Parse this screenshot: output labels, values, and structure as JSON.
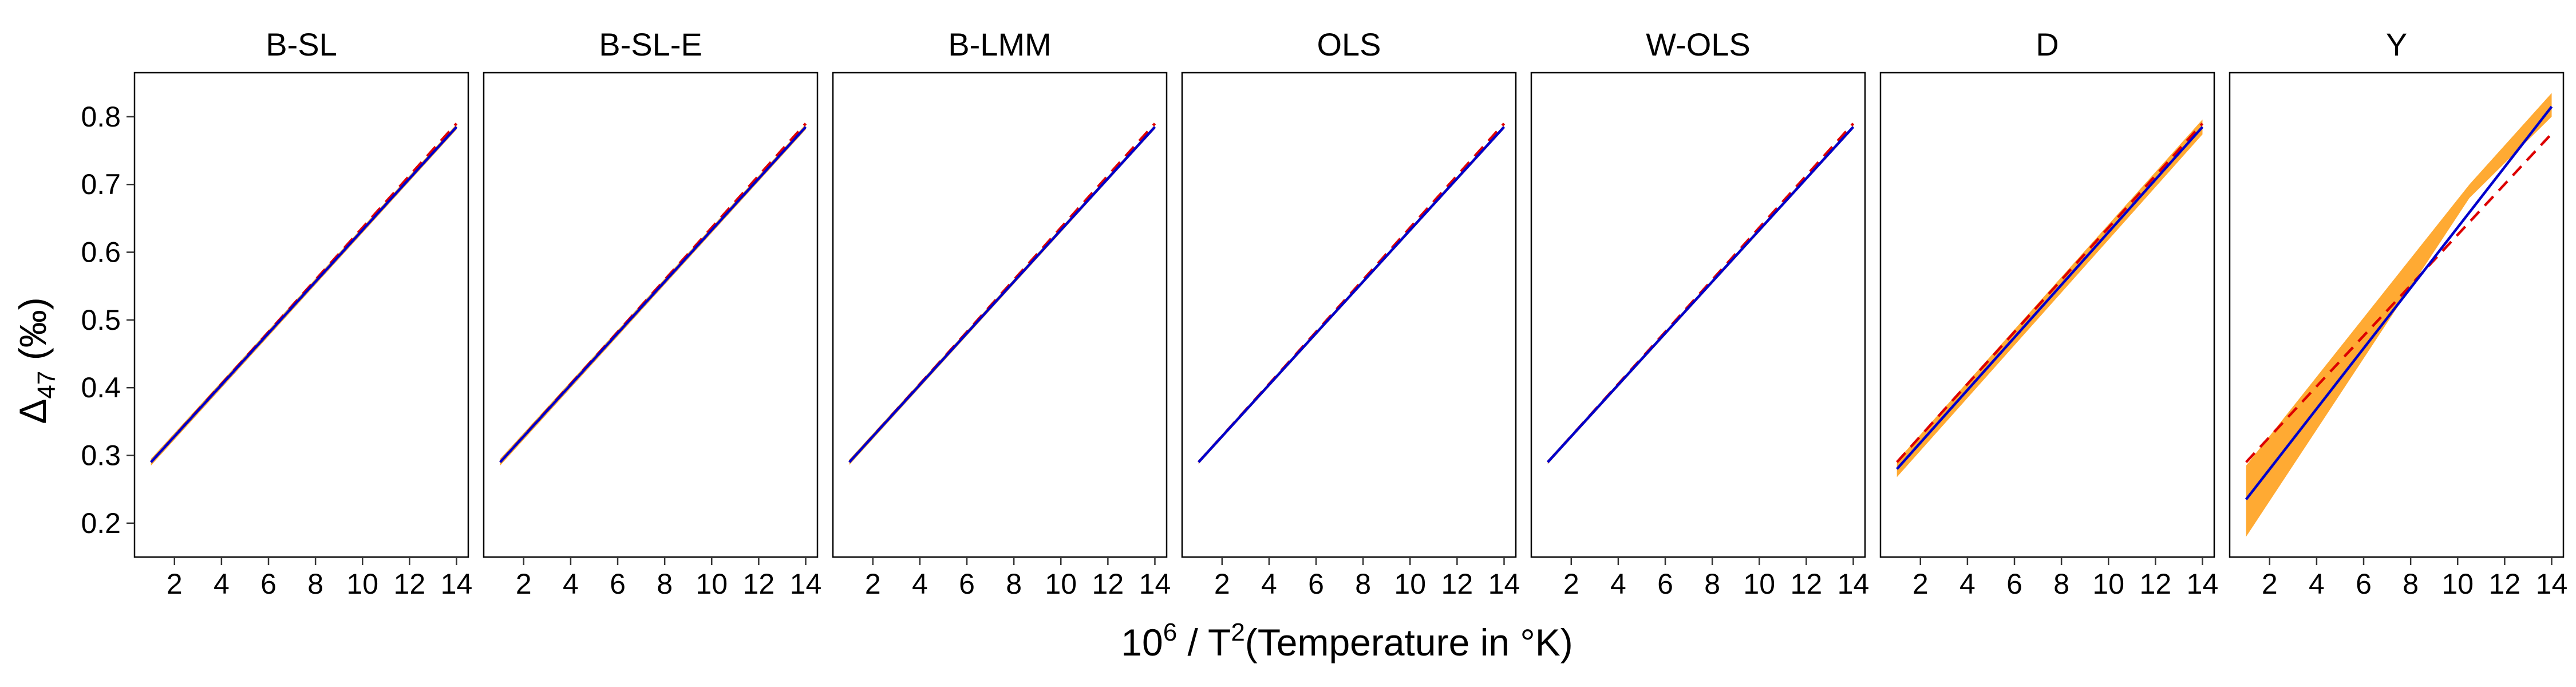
{
  "chart_data": {
    "type": "line",
    "x_label": {
      "base": "10",
      "exp": "6",
      "rest": " / T",
      "exp2": "2",
      "tail": "(Temperature in °K)"
    },
    "y_label": {
      "main": "Δ",
      "sub": "47",
      "tail": " (‰)"
    },
    "xlim": [
      0.3,
      14.5
    ],
    "ylim": [
      0.15,
      0.865
    ],
    "x_ticks": [
      2,
      4,
      6,
      8,
      10,
      12,
      14
    ],
    "y_ticks": [
      0.2,
      0.3,
      0.4,
      0.5,
      0.6,
      0.7,
      0.8
    ],
    "colors": {
      "fit": "#0000cc",
      "truth": "#dd0000",
      "ribbon": "#ffaa33"
    },
    "panels": [
      {
        "title": "B-SL",
        "fit": [
          [
            1.0,
            0.29
          ],
          [
            14.0,
            0.785
          ]
        ],
        "truth": [
          [
            1.0,
            0.29
          ],
          [
            14.0,
            0.79
          ]
        ],
        "ribbon": [
          [
            1.0,
            0.285,
            0.295
          ],
          [
            14.0,
            0.781,
            0.789
          ]
        ]
      },
      {
        "title": "B-SL-E",
        "fit": [
          [
            1.0,
            0.29
          ],
          [
            14.0,
            0.785
          ]
        ],
        "truth": [
          [
            1.0,
            0.29
          ],
          [
            14.0,
            0.79
          ]
        ],
        "ribbon": [
          [
            1.0,
            0.285,
            0.295
          ],
          [
            14.0,
            0.781,
            0.789
          ]
        ]
      },
      {
        "title": "B-LMM",
        "fit": [
          [
            1.0,
            0.29
          ],
          [
            14.0,
            0.785
          ]
        ],
        "truth": [
          [
            1.0,
            0.29
          ],
          [
            14.0,
            0.79
          ]
        ],
        "ribbon": [
          [
            1.0,
            0.286,
            0.294
          ],
          [
            14.0,
            0.782,
            0.788
          ]
        ]
      },
      {
        "title": "OLS",
        "fit": [
          [
            1.0,
            0.29
          ],
          [
            14.0,
            0.785
          ]
        ],
        "truth": [
          [
            1.0,
            0.29
          ],
          [
            14.0,
            0.79
          ]
        ],
        "ribbon": [
          [
            1.0,
            0.287,
            0.293
          ],
          [
            14.0,
            0.782,
            0.788
          ]
        ]
      },
      {
        "title": "W-OLS",
        "fit": [
          [
            1.0,
            0.29
          ],
          [
            14.0,
            0.785
          ]
        ],
        "truth": [
          [
            1.0,
            0.29
          ],
          [
            14.0,
            0.79
          ]
        ],
        "ribbon": [
          [
            1.0,
            0.287,
            0.293
          ],
          [
            14.0,
            0.782,
            0.788
          ]
        ]
      },
      {
        "title": "D",
        "fit": [
          [
            1.0,
            0.28
          ],
          [
            14.0,
            0.785
          ]
        ],
        "truth": [
          [
            1.0,
            0.29
          ],
          [
            14.0,
            0.79
          ]
        ],
        "ribbon": [
          [
            1.0,
            0.268,
            0.292
          ],
          [
            14.0,
            0.774,
            0.796
          ]
        ]
      },
      {
        "title": "Y",
        "fit": [
          [
            1.0,
            0.235
          ],
          [
            14.0,
            0.815
          ]
        ],
        "truth": [
          [
            1.0,
            0.29
          ],
          [
            14.0,
            0.775
          ]
        ],
        "ribbon": [
          [
            1.0,
            0.18,
            0.285
          ],
          [
            10.5,
            0.68,
            0.7
          ],
          [
            14.0,
            0.8,
            0.835
          ]
        ]
      }
    ]
  }
}
